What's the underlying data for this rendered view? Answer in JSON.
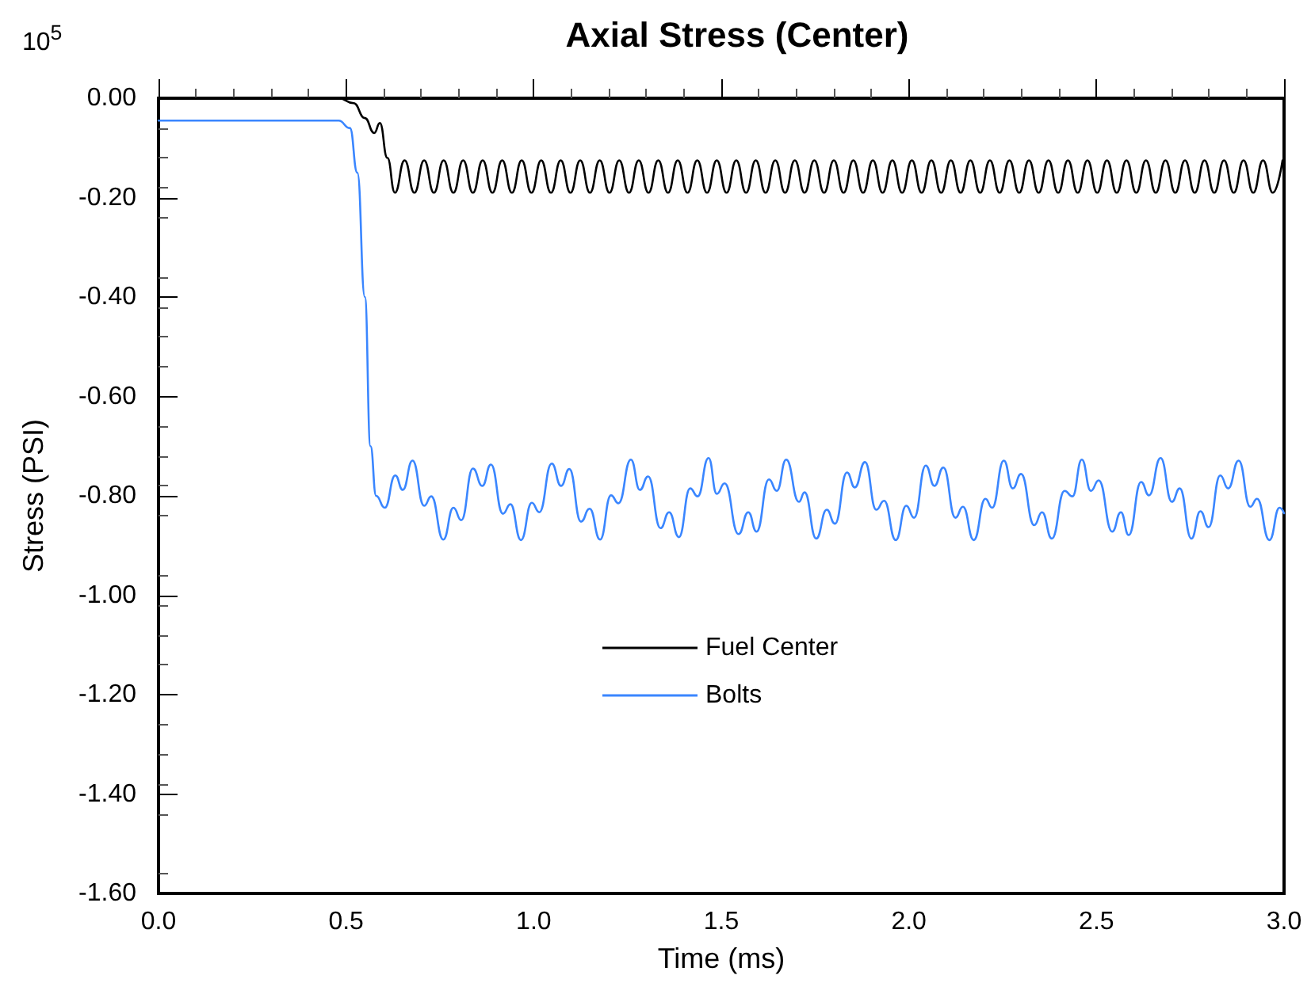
{
  "chart_data": {
    "type": "line",
    "title": "Axial Stress (Center)",
    "xlabel": "Time (ms)",
    "ylabel": "Stress (PSI)",
    "annotations": [
      "10$^{5}$"
    ],
    "xlim": [
      0,
      3
    ],
    "xticks": [
      {
        "value": 0,
        "label": "0.0"
      },
      {
        "value": 0.5,
        "label": "0.5"
      },
      {
        "value": 1,
        "label": "1.0"
      },
      {
        "value": 1.5,
        "label": "1.5"
      },
      {
        "value": 2,
        "label": "2.0"
      },
      {
        "value": 2.5,
        "label": "2.5"
      },
      {
        "value": 3,
        "label": "3.0"
      }
    ],
    "ylim": [
      -1.6,
      0
    ],
    "yticks": [
      {
        "value": 0,
        "label": "0.00"
      },
      {
        "value": -0.2,
        "label": "-0.20"
      },
      {
        "value": -0.4,
        "label": "-0.40"
      },
      {
        "value": -0.6,
        "label": "-0.60"
      },
      {
        "value": -0.8,
        "label": "-0.80"
      },
      {
        "value": -1,
        "label": "-1.00"
      },
      {
        "value": -1.2,
        "label": "-1.20"
      },
      {
        "value": -1.4,
        "label": "-1.40"
      },
      {
        "value": -1.6,
        "label": "-1.60"
      }
    ],
    "grid": false,
    "legend": "center",
    "marker": "none",
    "line_style": "solid",
    "series": [
      {
        "name": "Fuel Center",
        "color": "#000000",
        "x": [
          0,
          0.48,
          0.52,
          0.55,
          0.575,
          0.59,
          0.61,
          0.63,
          0.656,
          0.682,
          0.708,
          0.734,
          0.76,
          0.786,
          0.812,
          0.838,
          0.864,
          0.89,
          0.916,
          0.942,
          0.968,
          0.994,
          1.02,
          1.046,
          1.072,
          1.098,
          1.124,
          1.15,
          1.176,
          1.202,
          1.228,
          1.254,
          1.28,
          1.306,
          1.332,
          1.358,
          1.384,
          1.41,
          1.436,
          1.462,
          1.488,
          1.514,
          1.54,
          1.566,
          1.592,
          1.618,
          1.644,
          1.67,
          1.696,
          1.722,
          1.748,
          1.774,
          1.8,
          1.826,
          1.852,
          1.878,
          1.904,
          1.93,
          1.956,
          1.982,
          2.008,
          2.034,
          2.06,
          2.086,
          2.112,
          2.138,
          2.164,
          2.19,
          2.216,
          2.242,
          2.268,
          2.294,
          2.32,
          2.346,
          2.372,
          2.398,
          2.424,
          2.45,
          2.476,
          2.502,
          2.528,
          2.554,
          2.58,
          2.606,
          2.632,
          2.658,
          2.684,
          2.71,
          2.736,
          2.762,
          2.788,
          2.814,
          2.84,
          2.866,
          2.892,
          2.918,
          2.944,
          2.97,
          2.996
        ],
        "values": [
          0,
          0,
          -0.01,
          -0.04,
          -0.07,
          -0.05,
          -0.12,
          -0.19,
          -0.125,
          -0.19,
          -0.125,
          -0.19,
          -0.125,
          -0.19,
          -0.125,
          -0.19,
          -0.125,
          -0.19,
          -0.125,
          -0.19,
          -0.125,
          -0.19,
          -0.125,
          -0.19,
          -0.125,
          -0.19,
          -0.125,
          -0.19,
          -0.125,
          -0.19,
          -0.125,
          -0.19,
          -0.125,
          -0.19,
          -0.125,
          -0.19,
          -0.125,
          -0.19,
          -0.125,
          -0.19,
          -0.125,
          -0.19,
          -0.125,
          -0.19,
          -0.125,
          -0.19,
          -0.125,
          -0.19,
          -0.125,
          -0.19,
          -0.125,
          -0.19,
          -0.125,
          -0.19,
          -0.125,
          -0.19,
          -0.125,
          -0.19,
          -0.125,
          -0.19,
          -0.125,
          -0.19,
          -0.125,
          -0.19,
          -0.125,
          -0.19,
          -0.125,
          -0.19,
          -0.125,
          -0.19,
          -0.125,
          -0.19,
          -0.125,
          -0.19,
          -0.125,
          -0.19,
          -0.125,
          -0.19,
          -0.125,
          -0.19,
          -0.125,
          -0.19,
          -0.125,
          -0.19,
          -0.125,
          -0.19,
          -0.125,
          -0.19,
          -0.125,
          -0.19,
          -0.125,
          -0.19,
          -0.125,
          -0.19,
          -0.125,
          -0.19,
          -0.125,
          -0.19,
          -0.125
        ]
      },
      {
        "name": "Bolts",
        "color": "#3a86ff",
        "x": [
          0,
          0.48,
          0.51,
          0.53,
          0.55,
          0.565,
          0.58,
          0.603,
          0.631,
          0.651,
          0.677,
          0.708,
          0.727,
          0.759,
          0.786,
          0.807,
          0.838,
          0.863,
          0.886,
          0.918,
          0.938,
          0.966,
          0.995,
          1.015,
          1.048,
          1.073,
          1.095,
          1.126,
          1.149,
          1.177,
          1.206,
          1.226,
          1.259,
          1.283,
          1.305,
          1.338,
          1.361,
          1.387,
          1.417,
          1.437,
          1.466,
          1.488,
          1.509,
          1.546,
          1.572,
          1.594,
          1.627,
          1.648,
          1.673,
          1.707,
          1.722,
          1.753,
          1.781,
          1.803,
          1.835,
          1.856,
          1.883,
          1.913,
          1.934,
          1.965,
          1.993,
          2.014,
          2.045,
          2.068,
          2.092,
          2.124,
          2.144,
          2.173,
          2.204,
          2.222,
          2.253,
          2.277,
          2.299,
          2.334,
          2.355,
          2.381,
          2.415,
          2.436,
          2.461,
          2.485,
          2.506,
          2.542,
          2.565,
          2.586,
          2.619,
          2.64,
          2.671,
          2.701,
          2.722,
          2.753,
          2.777,
          2.799,
          2.83,
          2.851,
          2.879,
          2.91,
          2.928,
          2.961,
          2.988,
          3
        ],
        "values": [
          -0.045,
          -0.045,
          -0.06,
          -0.15,
          -0.4,
          -0.7,
          -0.8,
          -0.824,
          -0.759,
          -0.788,
          -0.729,
          -0.82,
          -0.801,
          -0.888,
          -0.824,
          -0.849,
          -0.745,
          -0.78,
          -0.737,
          -0.836,
          -0.817,
          -0.889,
          -0.814,
          -0.833,
          -0.735,
          -0.78,
          -0.746,
          -0.852,
          -0.826,
          -0.888,
          -0.799,
          -0.815,
          -0.727,
          -0.788,
          -0.761,
          -0.865,
          -0.833,
          -0.883,
          -0.785,
          -0.801,
          -0.724,
          -0.796,
          -0.775,
          -0.877,
          -0.833,
          -0.872,
          -0.767,
          -0.79,
          -0.727,
          -0.812,
          -0.793,
          -0.886,
          -0.828,
          -0.856,
          -0.753,
          -0.783,
          -0.732,
          -0.828,
          -0.81,
          -0.889,
          -0.82,
          -0.844,
          -0.739,
          -0.78,
          -0.743,
          -0.844,
          -0.822,
          -0.889,
          -0.806,
          -0.824,
          -0.729,
          -0.785,
          -0.756,
          -0.859,
          -0.833,
          -0.886,
          -0.79,
          -0.801,
          -0.727,
          -0.79,
          -0.769,
          -0.872,
          -0.833,
          -0.879,
          -0.772,
          -0.799,
          -0.724,
          -0.812,
          -0.785,
          -0.886,
          -0.831,
          -0.863,
          -0.759,
          -0.785,
          -0.729,
          -0.822,
          -0.806,
          -0.889,
          -0.824,
          -0.835
        ]
      }
    ]
  }
}
